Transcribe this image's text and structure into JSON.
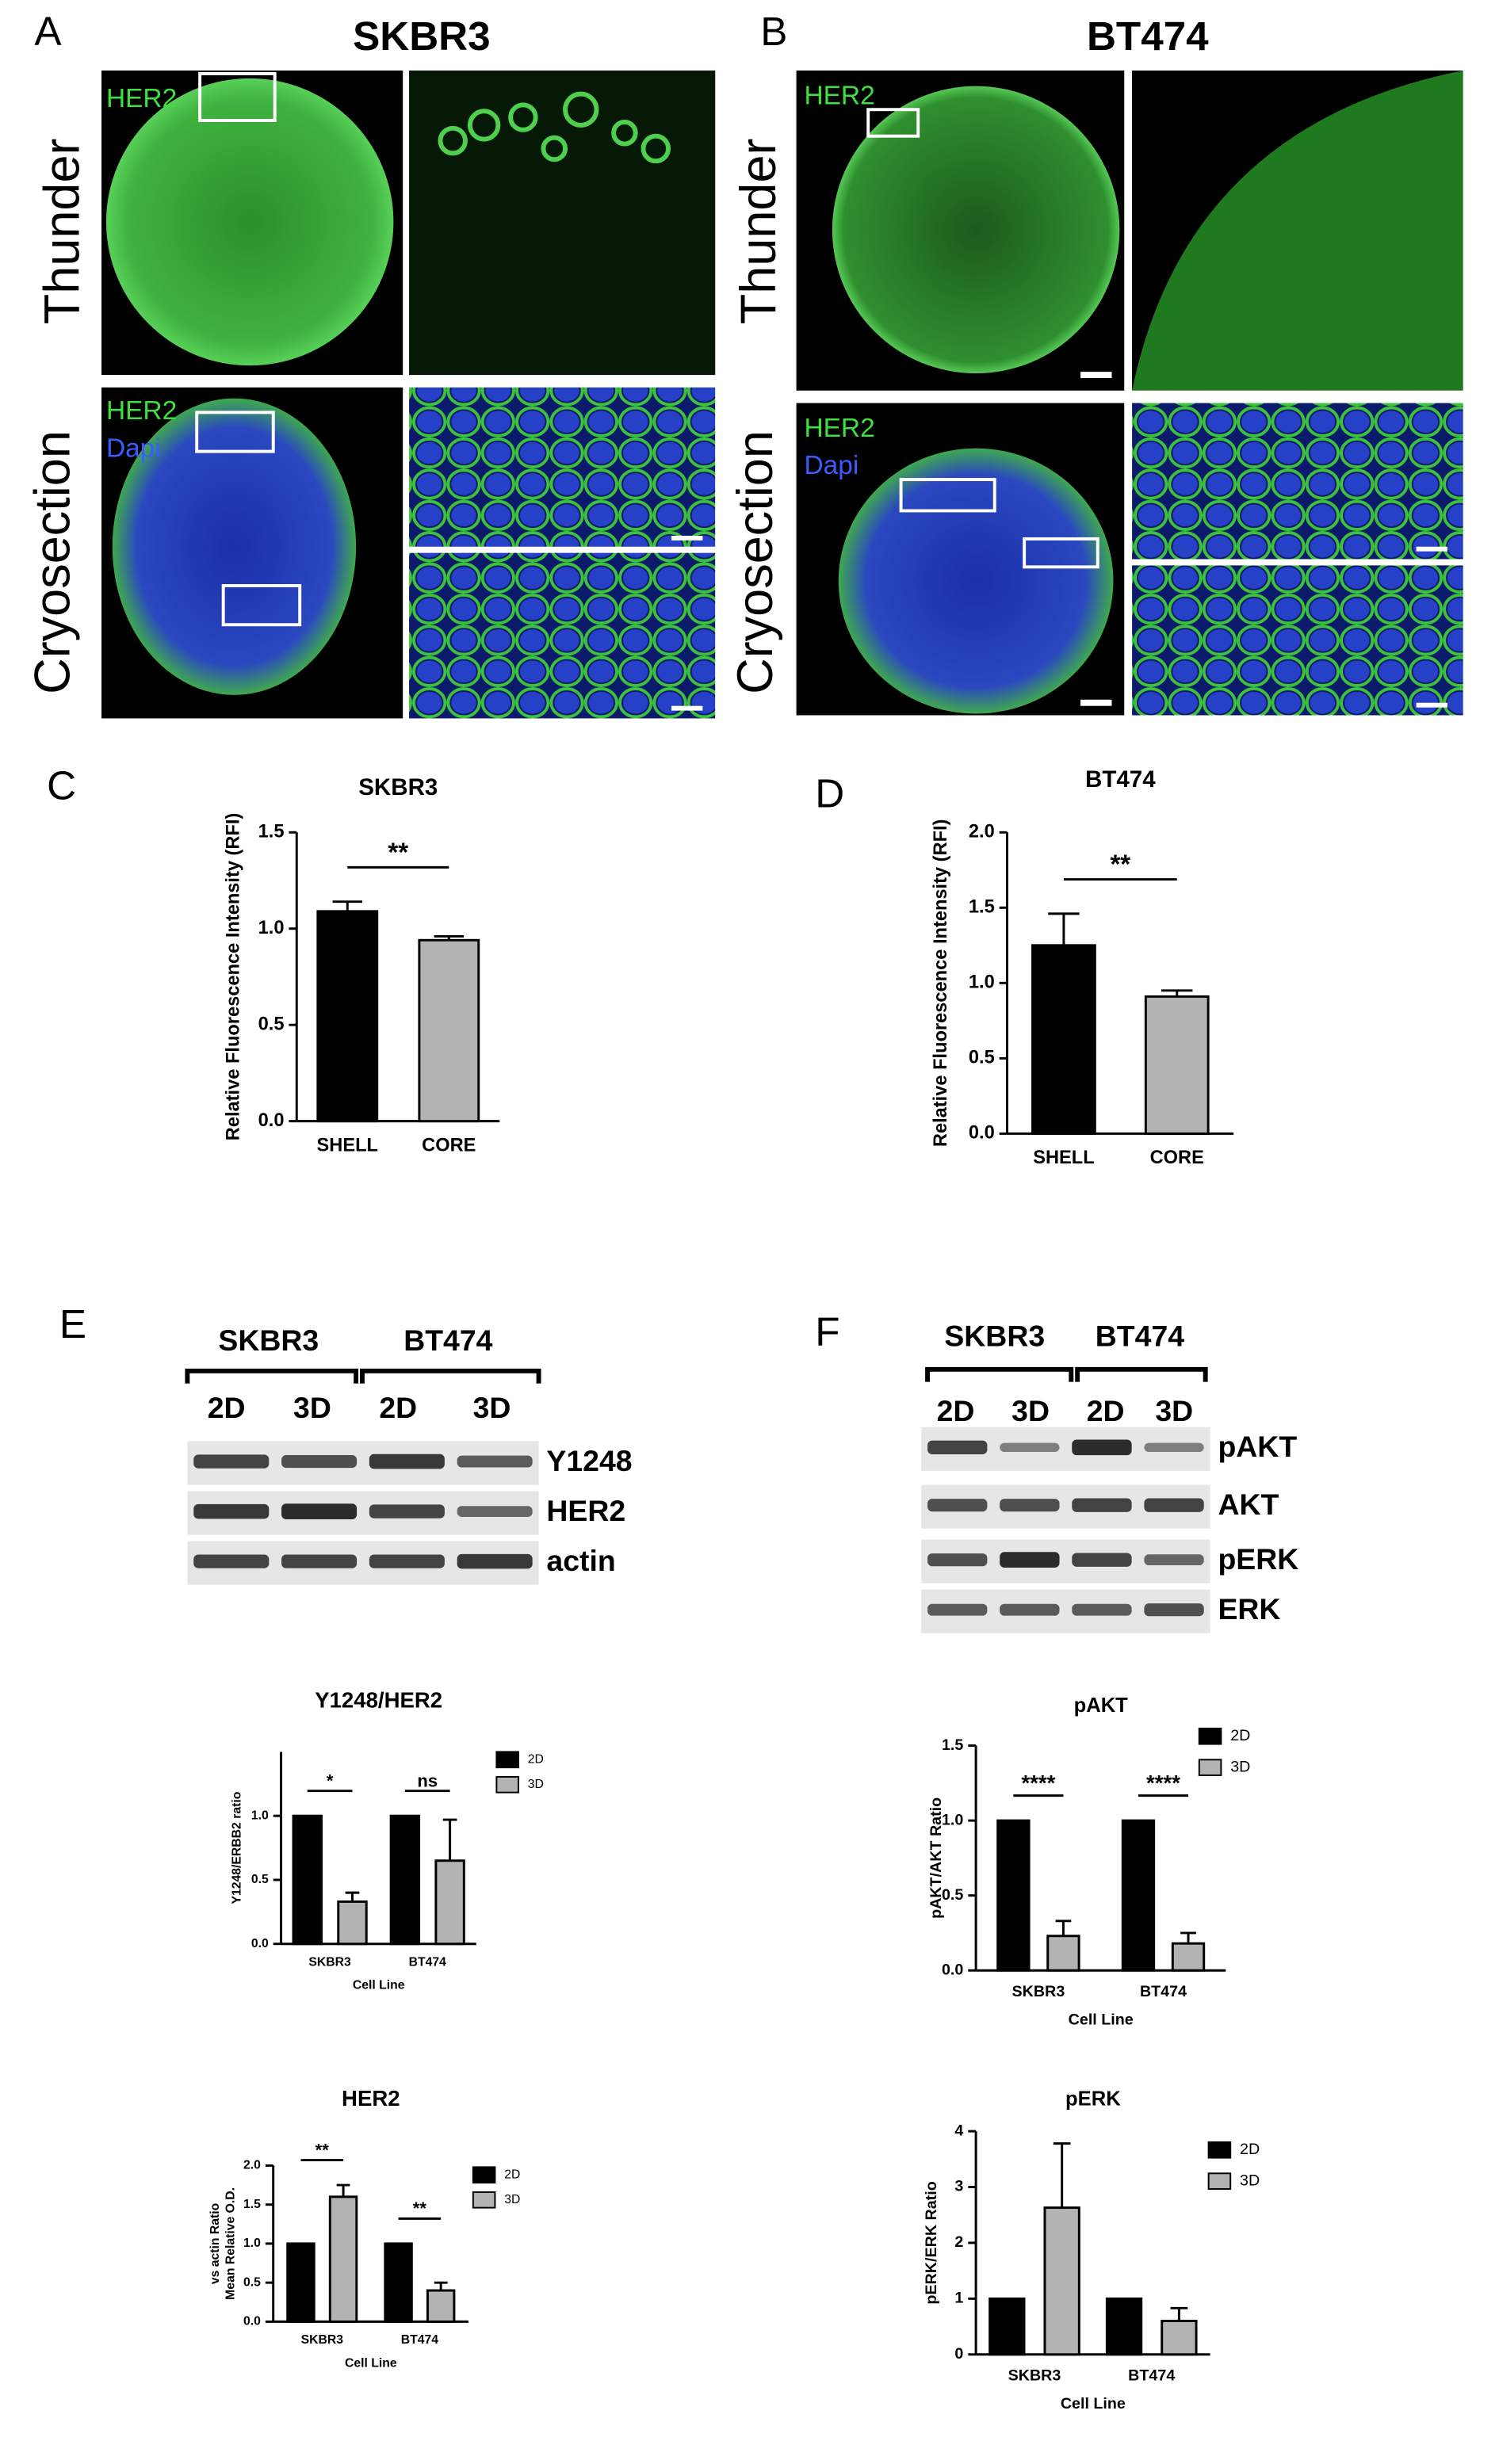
{
  "panel_labels": [
    "A",
    "B",
    "C",
    "D",
    "E",
    "F"
  ],
  "microscopy": [
    {
      "title": "SKBR3",
      "rows": [
        "Thunder",
        "Cryosection"
      ],
      "stain_labels": [
        [
          "HER2"
        ],
        [
          "HER2",
          "Dapi"
        ]
      ]
    },
    {
      "title": "BT474",
      "rows": [
        "Thunder",
        "Cryosection"
      ],
      "stain_labels": [
        [
          "HER2"
        ],
        [
          "HER2",
          "Dapi"
        ]
      ]
    }
  ],
  "blots": [
    {
      "cell_lines": [
        "SKBR3",
        "BT474"
      ],
      "conditions": [
        "2D",
        "3D",
        "2D",
        "3D"
      ],
      "bands": [
        "Y1248",
        "HER2",
        "actin"
      ]
    },
    {
      "cell_lines": [
        "SKBR3",
        "BT474"
      ],
      "conditions": [
        "2D",
        "3D",
        "2D",
        "3D"
      ],
      "bands": [
        "pAKT",
        "AKT",
        "pERK",
        "ERK"
      ]
    }
  ],
  "chart_data": [
    {
      "type": "bar",
      "title": "SKBR3",
      "y_label": "Relative Fluorescence Intensity (RFI)",
      "categories": [
        "SHELL",
        "CORE"
      ],
      "values": [
        1.09,
        0.94
      ],
      "errors": [
        0.05,
        0.02
      ],
      "colors": [
        "#000000",
        "#b3b3b3"
      ],
      "ylim": [
        0,
        1.5
      ],
      "yticks": [
        {
          "value": 0,
          "label": "0.0"
        },
        0.5,
        {
          "value": 1,
          "label": "1.0"
        },
        1.5
      ],
      "annotations": [
        "**"
      ]
    },
    {
      "type": "bar",
      "title": "BT474",
      "y_label": "Relative Fluorescence Intensity (RFI)",
      "categories": [
        "SHELL",
        "CORE"
      ],
      "values": [
        1.25,
        0.91
      ],
      "errors": [
        0.21,
        0.04
      ],
      "colors": [
        "#000000",
        "#b3b3b3"
      ],
      "ylim": [
        0,
        2
      ],
      "yticks": [
        {
          "value": 0,
          "label": "0.0"
        },
        0.5,
        {
          "value": 1,
          "label": "1.0"
        },
        1.5,
        {
          "value": 2,
          "label": "2.0"
        }
      ],
      "annotations": [
        "**"
      ]
    },
    {
      "type": "bar",
      "title": "Y1248/HER2",
      "y_label": "Y1248/ERBB2 ratio",
      "x_label": "Cell Line",
      "categories": [
        "SKBR3",
        "BT474"
      ],
      "series": [
        {
          "name": "2D",
          "color": "#000000",
          "values": [
            1,
            1
          ]
        },
        {
          "name": "3D",
          "color": "#b3b3b3",
          "values": [
            0.33,
            0.65
          ],
          "errors": [
            0.07,
            0.32
          ]
        }
      ],
      "ylim": [
        0,
        1.5
      ],
      "yticks": [
        {
          "value": 0,
          "label": "0.0"
        },
        0.5,
        {
          "value": 1,
          "label": "1.0"
        }
      ],
      "annotations": [
        "*",
        "ns"
      ],
      "legend": "right"
    },
    {
      "type": "bar",
      "title": "HER2",
      "y_label": [
        "vs actin Ratio",
        "Mean Relative O.D."
      ],
      "x_label": "Cell Line",
      "categories": [
        "SKBR3",
        "BT474"
      ],
      "series": [
        {
          "name": "2D",
          "color": "#000000",
          "values": [
            1,
            1
          ]
        },
        {
          "name": "3D",
          "color": "#b3b3b3",
          "values": [
            1.6,
            0.4
          ],
          "errors": [
            0.15,
            0.1
          ]
        }
      ],
      "ylim": [
        0,
        2
      ],
      "yticks": [
        {
          "value": 0,
          "label": "0.0"
        },
        0.5,
        {
          "value": 1,
          "label": "1.0"
        },
        1.5,
        {
          "value": 2,
          "label": "2.0"
        }
      ],
      "annotations": [
        "**",
        "**"
      ],
      "legend": "right"
    },
    {
      "type": "bar",
      "title": "pAKT",
      "y_label": "pAKT/AKT Ratio",
      "x_label": "Cell Line",
      "categories": [
        "SKBR3",
        "BT474"
      ],
      "series": [
        {
          "name": "2D",
          "color": "#000000",
          "values": [
            1,
            1
          ]
        },
        {
          "name": "3D",
          "color": "#b3b3b3",
          "values": [
            0.23,
            0.18
          ],
          "errors": [
            0.1,
            0.07
          ]
        }
      ],
      "ylim": [
        0,
        1.5
      ],
      "yticks": [
        {
          "value": 0,
          "label": "0.0"
        },
        0.5,
        {
          "value": 1,
          "label": "1.0"
        },
        1.5
      ],
      "annotations": [
        "****",
        "****"
      ],
      "legend": "right"
    },
    {
      "type": "bar",
      "title": "pERK",
      "y_label": "pERK/ERK Ratio",
      "x_label": "Cell Line",
      "categories": [
        "SKBR3",
        "BT474"
      ],
      "series": [
        {
          "name": "2D",
          "color": "#000000",
          "values": [
            1,
            1
          ]
        },
        {
          "name": "3D",
          "color": "#b3b3b3",
          "values": [
            2.63,
            0.6
          ],
          "errors": [
            1.15,
            0.23
          ]
        }
      ],
      "ylim": [
        0,
        4
      ],
      "yticks": [
        0,
        1,
        2,
        3,
        4
      ],
      "legend": "right"
    }
  ]
}
